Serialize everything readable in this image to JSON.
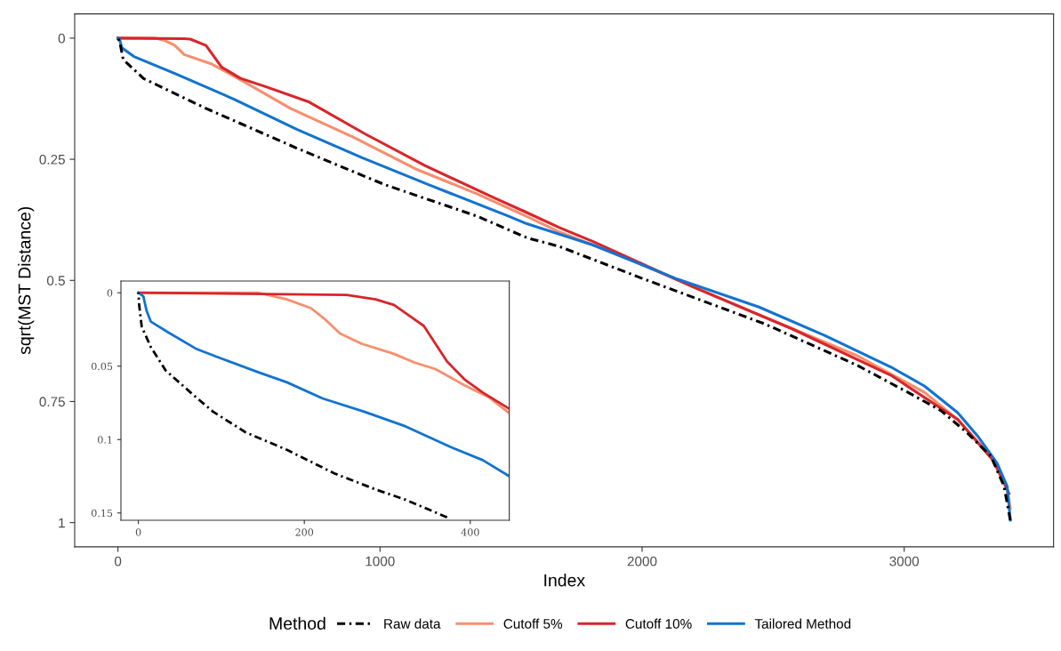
{
  "chart_data": [
    {
      "type": "line",
      "xlabel": "Index",
      "ylabel": "sqrt(MST Distance)",
      "legend_title": "Method",
      "legend": "bottom",
      "grid": false,
      "xlim": [
        -165,
        3570
      ],
      "xticks": [
        0,
        1000,
        2000,
        3000
      ],
      "ylim": [
        1.05,
        -0.05
      ],
      "yticks": [
        0,
        0.25,
        0.5,
        0.75,
        1
      ],
      "series": [
        {
          "name": "Raw data",
          "color": "#000000",
          "line_style": "dashdot",
          "x": [
            0,
            7,
            20,
            97,
            336,
            682,
            1016,
            1373,
            1560,
            1684,
            2001,
            2469,
            2823,
            3014,
            3141,
            3241,
            3331,
            3381,
            3405
          ],
          "values": [
            0,
            0.008,
            0.044,
            0.083,
            0.145,
            0.227,
            0.302,
            0.368,
            0.412,
            0.43,
            0.496,
            0.59,
            0.676,
            0.731,
            0.769,
            0.815,
            0.863,
            0.925,
            0.995
          ]
        },
        {
          "name": "Cutoff 5%",
          "color": "#f88e6e",
          "line_style": "solid",
          "x": [
            0,
            144,
            179,
            217,
            253,
            360,
            491,
            658,
            897,
            1136,
            1373,
            1560,
            1684,
            1940,
            2446,
            2823,
            3077,
            3204,
            3331,
            3393,
            3405
          ],
          "values": [
            0,
            0,
            0.005,
            0.015,
            0.034,
            0.054,
            0.093,
            0.145,
            0.204,
            0.27,
            0.322,
            0.368,
            0.4,
            0.454,
            0.571,
            0.656,
            0.731,
            0.787,
            0.863,
            0.932,
            0.97
          ]
        },
        {
          "name": "Cutoff 10%",
          "color": "#d7262a",
          "line_style": "solid",
          "x": [
            0,
            251,
            276,
            336,
            396,
            468,
            563,
            730,
            944,
            1171,
            1433,
            1560,
            1684,
            1813,
            2192,
            2572,
            2950,
            3204,
            3343,
            3400
          ],
          "values": [
            0,
            0.001,
            0.002,
            0.015,
            0.06,
            0.083,
            0.1,
            0.132,
            0.198,
            0.263,
            0.329,
            0.36,
            0.391,
            0.42,
            0.513,
            0.6,
            0.696,
            0.787,
            0.874,
            0.94
          ]
        },
        {
          "name": "Tailored Method",
          "color": "#1273d0",
          "line_style": "solid",
          "x": [
            0,
            6,
            15,
            61,
            217,
            443,
            682,
            932,
            1183,
            1493,
            1560,
            1813,
            2128,
            2446,
            2698,
            2950,
            3077,
            3204,
            3280,
            3354,
            3393,
            3405
          ],
          "values": [
            0,
            0.002,
            0.02,
            0.038,
            0.073,
            0.126,
            0.188,
            0.247,
            0.302,
            0.368,
            0.383,
            0.427,
            0.496,
            0.555,
            0.614,
            0.679,
            0.718,
            0.773,
            0.821,
            0.877,
            0.925,
            0.995
          ]
        }
      ]
    },
    {
      "type": "line",
      "legend": false,
      "grid": false,
      "xlim": [
        -21,
        447
      ],
      "xticks": [
        0,
        200,
        400
      ],
      "ylim": [
        0.155,
        -0.008
      ],
      "yticks": [
        0,
        0.05,
        0.1,
        0.15
      ],
      "series": [
        {
          "color": "#000000",
          "line_style": "dashdot",
          "x": [
            0,
            1,
            4,
            15,
            33,
            65,
            90,
            129,
            179,
            236,
            286,
            322,
            372
          ],
          "values": [
            0,
            0.0085,
            0.023,
            0.037,
            0.053,
            0.069,
            0.081,
            0.095,
            0.107,
            0.123,
            0.134,
            0.141,
            0.153
          ]
        },
        {
          "color": "#f88e6e",
          "line_style": "solid",
          "x": [
            0,
            144,
            179,
            208,
            226,
            243,
            269,
            308,
            333,
            358,
            393,
            422,
            447
          ],
          "values": [
            0,
            0,
            0.0045,
            0.0105,
            0.0186,
            0.0277,
            0.0347,
            0.0416,
            0.0476,
            0.052,
            0.063,
            0.071,
            0.082
          ]
        },
        {
          "color": "#d7262a",
          "line_style": "solid",
          "x": [
            0,
            251,
            286,
            308,
            329,
            344,
            358,
            372,
            393,
            415,
            447
          ],
          "values": [
            0,
            0.0014,
            0.0045,
            0.0083,
            0.0166,
            0.0226,
            0.0347,
            0.0468,
            0.059,
            0.068,
            0.079
          ]
        },
        {
          "color": "#1273d0",
          "line_style": "solid",
          "x": [
            0,
            6,
            10,
            15,
            36,
            69,
            101,
            144,
            179,
            222,
            272,
            322,
            376,
            415,
            447
          ],
          "values": [
            0,
            0.0024,
            0.0125,
            0.0196,
            0.027,
            0.038,
            0.045,
            0.054,
            0.061,
            0.072,
            0.081,
            0.091,
            0.105,
            0.114,
            0.125
          ]
        }
      ]
    }
  ]
}
